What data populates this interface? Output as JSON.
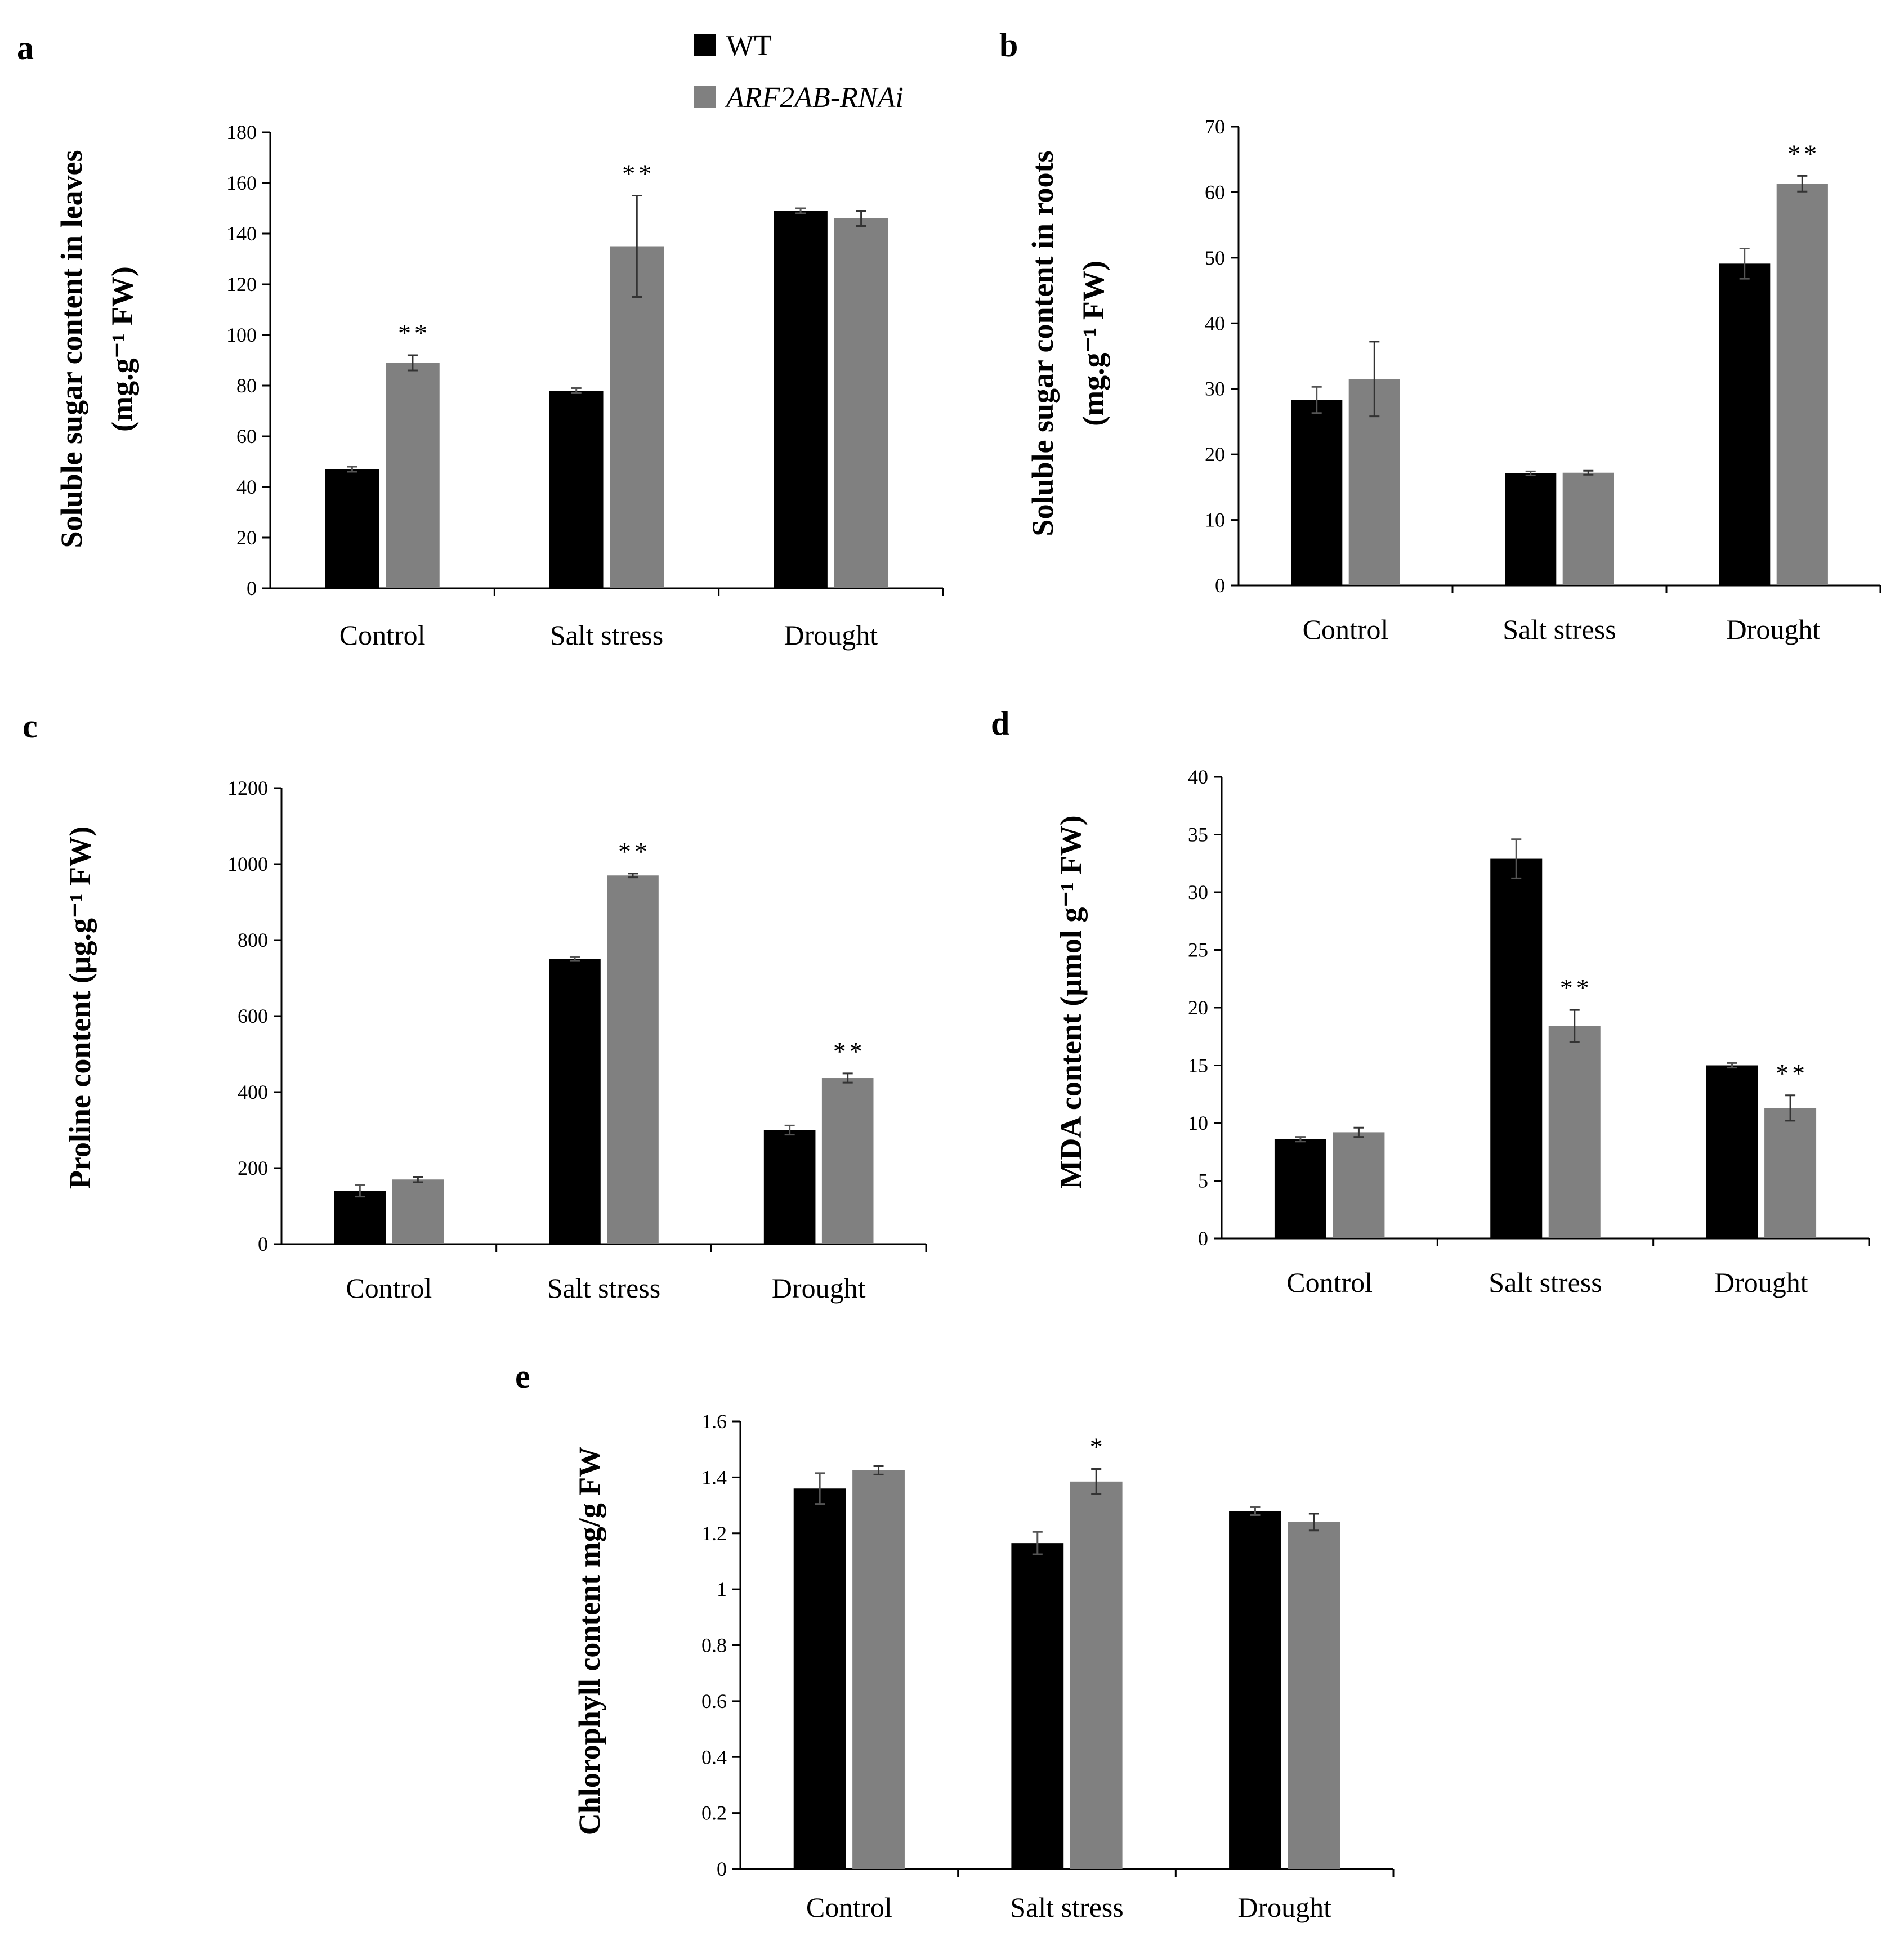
{
  "legend": {
    "series": [
      {
        "name": "WT",
        "color": "#000000",
        "italic": false
      },
      {
        "name": "ARF2AB-RNAi",
        "color": "#808080",
        "italic": true
      }
    ]
  },
  "chart_data": [
    {
      "id": "a",
      "panel_label": "a",
      "type": "bar",
      "categories": [
        "Control",
        "Salt stress",
        "Drought"
      ],
      "series": [
        {
          "name": "WT",
          "values": [
            47,
            78,
            149
          ],
          "errors": [
            1,
            1,
            1
          ]
        },
        {
          "name": "ARF2AB-RNAi",
          "values": [
            89,
            135,
            146
          ],
          "errors": [
            3,
            20,
            3
          ]
        }
      ],
      "significance": [
        {
          "category": 0,
          "series": 1,
          "text": "**"
        },
        {
          "category": 1,
          "series": 1,
          "text": "**"
        }
      ],
      "yticks": [
        "0",
        "20",
        "40",
        "60",
        "80",
        "100",
        "120",
        "140",
        "160",
        "180"
      ],
      "ylim": [
        0,
        180
      ],
      "ylabel_lines": [
        "Soluble sugar content in leaves",
        "(mg.g⁻¹ FW)"
      ]
    },
    {
      "id": "b",
      "panel_label": "b",
      "type": "bar",
      "categories": [
        "Control",
        "Salt stress",
        "Drought"
      ],
      "series": [
        {
          "name": "WT",
          "values": [
            28.3,
            17.1,
            49.1
          ],
          "errors": [
            2,
            0.3,
            2.3
          ]
        },
        {
          "name": "ARF2AB-RNAi",
          "values": [
            31.5,
            17.2,
            61.3
          ],
          "errors": [
            5.7,
            0.3,
            1.2
          ]
        }
      ],
      "significance": [
        {
          "category": 2,
          "series": 1,
          "text": "**"
        }
      ],
      "yticks": [
        "0",
        "10",
        "20",
        "30",
        "40",
        "50",
        "60",
        "70"
      ],
      "ylim": [
        0,
        70
      ],
      "ylabel_lines": [
        "Soluble sugar content in roots",
        "(mg.g⁻¹ FW)"
      ]
    },
    {
      "id": "c",
      "panel_label": "c",
      "type": "bar",
      "categories": [
        "Control",
        "Salt stress",
        "Drought"
      ],
      "series": [
        {
          "name": "WT",
          "values": [
            140,
            750,
            300
          ],
          "errors": [
            15,
            5,
            12
          ]
        },
        {
          "name": "ARF2AB-RNAi",
          "values": [
            170,
            970,
            437
          ],
          "errors": [
            7,
            5,
            12
          ]
        }
      ],
      "significance": [
        {
          "category": 1,
          "series": 1,
          "text": "**"
        },
        {
          "category": 2,
          "series": 1,
          "text": "**"
        }
      ],
      "yticks": [
        "0",
        "200",
        "400",
        "600",
        "800",
        "1000",
        "1200"
      ],
      "ylim": [
        0,
        1200
      ],
      "ylabel_lines": [
        "Proline content (μg.g⁻¹ FW)"
      ]
    },
    {
      "id": "d",
      "panel_label": "d",
      "type": "bar",
      "categories": [
        "Control",
        "Salt stress",
        "Drought"
      ],
      "series": [
        {
          "name": "WT",
          "values": [
            8.6,
            32.9,
            15
          ],
          "errors": [
            0.2,
            1.7,
            0.2
          ]
        },
        {
          "name": "ARF2AB-RNAi",
          "values": [
            9.2,
            18.4,
            11.3
          ],
          "errors": [
            0.4,
            1.4,
            1.1
          ]
        }
      ],
      "significance": [
        {
          "category": 1,
          "series": 1,
          "text": "**"
        },
        {
          "category": 2,
          "series": 1,
          "text": "**"
        }
      ],
      "yticks": [
        "0",
        "5",
        "10",
        "15",
        "20",
        "25",
        "30",
        "35",
        "40"
      ],
      "ylim": [
        0,
        40
      ],
      "ylabel_lines": [
        "MDA content (μmol g⁻¹  FW)"
      ]
    },
    {
      "id": "e",
      "panel_label": "e",
      "type": "bar",
      "categories": [
        "Control",
        "Salt stress",
        "Drought"
      ],
      "series": [
        {
          "name": "WT",
          "values": [
            1.36,
            1.165,
            1.28
          ],
          "errors": [
            0.055,
            0.04,
            0.015
          ]
        },
        {
          "name": "ARF2AB-RNAi",
          "values": [
            1.425,
            1.385,
            1.24
          ],
          "errors": [
            0.015,
            0.045,
            0.03
          ]
        }
      ],
      "significance": [
        {
          "category": 1,
          "series": 1,
          "text": "*"
        }
      ],
      "yticks": [
        "0",
        "0.2",
        "0.4",
        "0.6",
        "0.8",
        "1",
        "1.2",
        "1.4",
        "1.6"
      ],
      "ylim": [
        0,
        1.6
      ],
      "ylabel_lines": [
        "Chlorophyll content mg/g FW"
      ]
    }
  ]
}
